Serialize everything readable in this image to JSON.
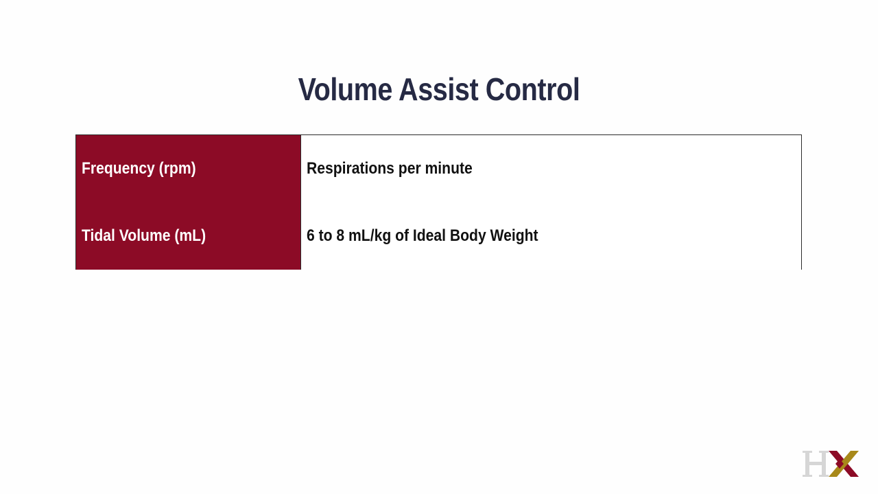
{
  "slide": {
    "title": "Volume Assist Control"
  },
  "table": {
    "rows": [
      {
        "label": "Frequency (rpm)",
        "value": "Respirations per minute"
      },
      {
        "label": "Tidal Volume (mL)",
        "value": "6 to 8 mL/kg of Ideal Body Weight"
      }
    ]
  },
  "logo": {
    "text": "HX",
    "colors": {
      "h": "#d6d6d6",
      "x_left": "#8c0b26",
      "x_right": "#a8891a"
    }
  },
  "colors": {
    "title": "#262a44",
    "label_bg": "#8c0b26",
    "border": "#2a2a2a"
  }
}
